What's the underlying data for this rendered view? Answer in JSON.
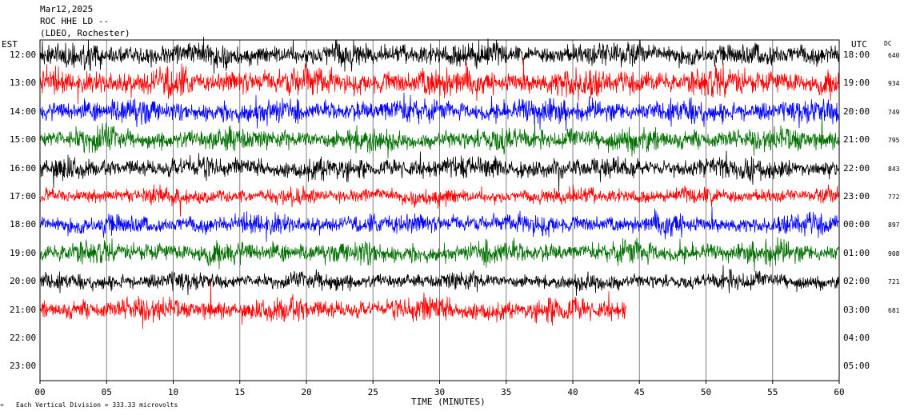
{
  "header": {
    "line1": "Mar12,2025",
    "line2": "ROC HHE LD --",
    "line3": "(LDEO, Rochester)"
  },
  "left_axis_label": "EST",
  "right_axis_label": "UTC",
  "dc_label": "DC",
  "footer": {
    "scale_note": "Each Vertical Division =  333.33 microvolts"
  },
  "chart_data": {
    "type": "line",
    "xlabel": "TIME (MINUTES)",
    "xlim": [
      0,
      60
    ],
    "x_ticks": [
      "00",
      "05",
      "10",
      "15",
      "20",
      "25",
      "30",
      "35",
      "40",
      "45",
      "50",
      "55",
      "60"
    ],
    "trace_colors": [
      "#000000",
      "#ff0000",
      "#0000ff",
      "#007000"
    ],
    "rows": [
      {
        "est": "12:00",
        "utc": "18:00",
        "dc": "640",
        "color": "#000000",
        "end_min": 60,
        "amp": 0.6
      },
      {
        "est": "13:00",
        "utc": "19:00",
        "dc": "934",
        "color": "#ff0000",
        "end_min": 60,
        "amp": 0.7
      },
      {
        "est": "14:00",
        "utc": "20:00",
        "dc": "749",
        "color": "#0000ff",
        "end_min": 60,
        "amp": 0.6
      },
      {
        "est": "15:00",
        "utc": "21:00",
        "dc": "795",
        "color": "#007000",
        "end_min": 60,
        "amp": 0.6
      },
      {
        "est": "16:00",
        "utc": "22:00",
        "dc": "843",
        "color": "#000000",
        "end_min": 60,
        "amp": 0.55
      },
      {
        "est": "17:00",
        "utc": "23:00",
        "dc": "772",
        "color": "#ff0000",
        "end_min": 60,
        "amp": 0.4
      },
      {
        "est": "18:00",
        "utc": "00:00",
        "dc": "897",
        "color": "#0000ff",
        "end_min": 60,
        "amp": 0.5
      },
      {
        "est": "19:00",
        "utc": "01:00",
        "dc": "908",
        "color": "#007000",
        "end_min": 60,
        "amp": 0.55
      },
      {
        "est": "20:00",
        "utc": "02:00",
        "dc": "721",
        "color": "#000000",
        "end_min": 60,
        "amp": 0.45
      },
      {
        "est": "21:00",
        "utc": "03:00",
        "dc": "681",
        "color": "#ff0000",
        "end_min": 44,
        "amp": 0.6
      },
      {
        "est": "22:00",
        "utc": "04:00",
        "dc": "",
        "color": "#0000ff",
        "end_min": 0,
        "amp": 0
      },
      {
        "est": "23:00",
        "utc": "05:00",
        "dc": "",
        "color": "#007000",
        "end_min": 0,
        "amp": 0
      }
    ]
  }
}
